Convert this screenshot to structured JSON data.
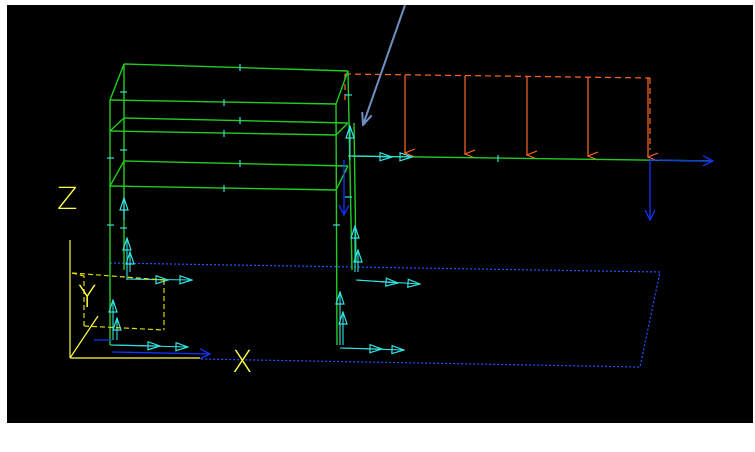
{
  "viewport": {
    "background": "#000000",
    "frame_color": "#ffffff"
  },
  "axes": {
    "x_label": "X",
    "y_label": "Y",
    "z_label": "Z",
    "color": "#ffff44"
  },
  "colors": {
    "frame_member": "#22cc22",
    "support_arrow": "#33e0e0",
    "distributed_load": "#ff6622",
    "load_reference_dashed": "#ff6622",
    "ground_outline_dashed": "#2255ff",
    "point_load": "#1133ff",
    "local_axis_dashed": "#dddd00",
    "pointer_arrow": "#6f8fc0"
  },
  "icons": {
    "pointer": "annotation-arrow-icon",
    "support": "fixed-support-arrow-icon",
    "load": "load-arrow-icon"
  },
  "distributed_load": {
    "arrow_count": 5
  }
}
